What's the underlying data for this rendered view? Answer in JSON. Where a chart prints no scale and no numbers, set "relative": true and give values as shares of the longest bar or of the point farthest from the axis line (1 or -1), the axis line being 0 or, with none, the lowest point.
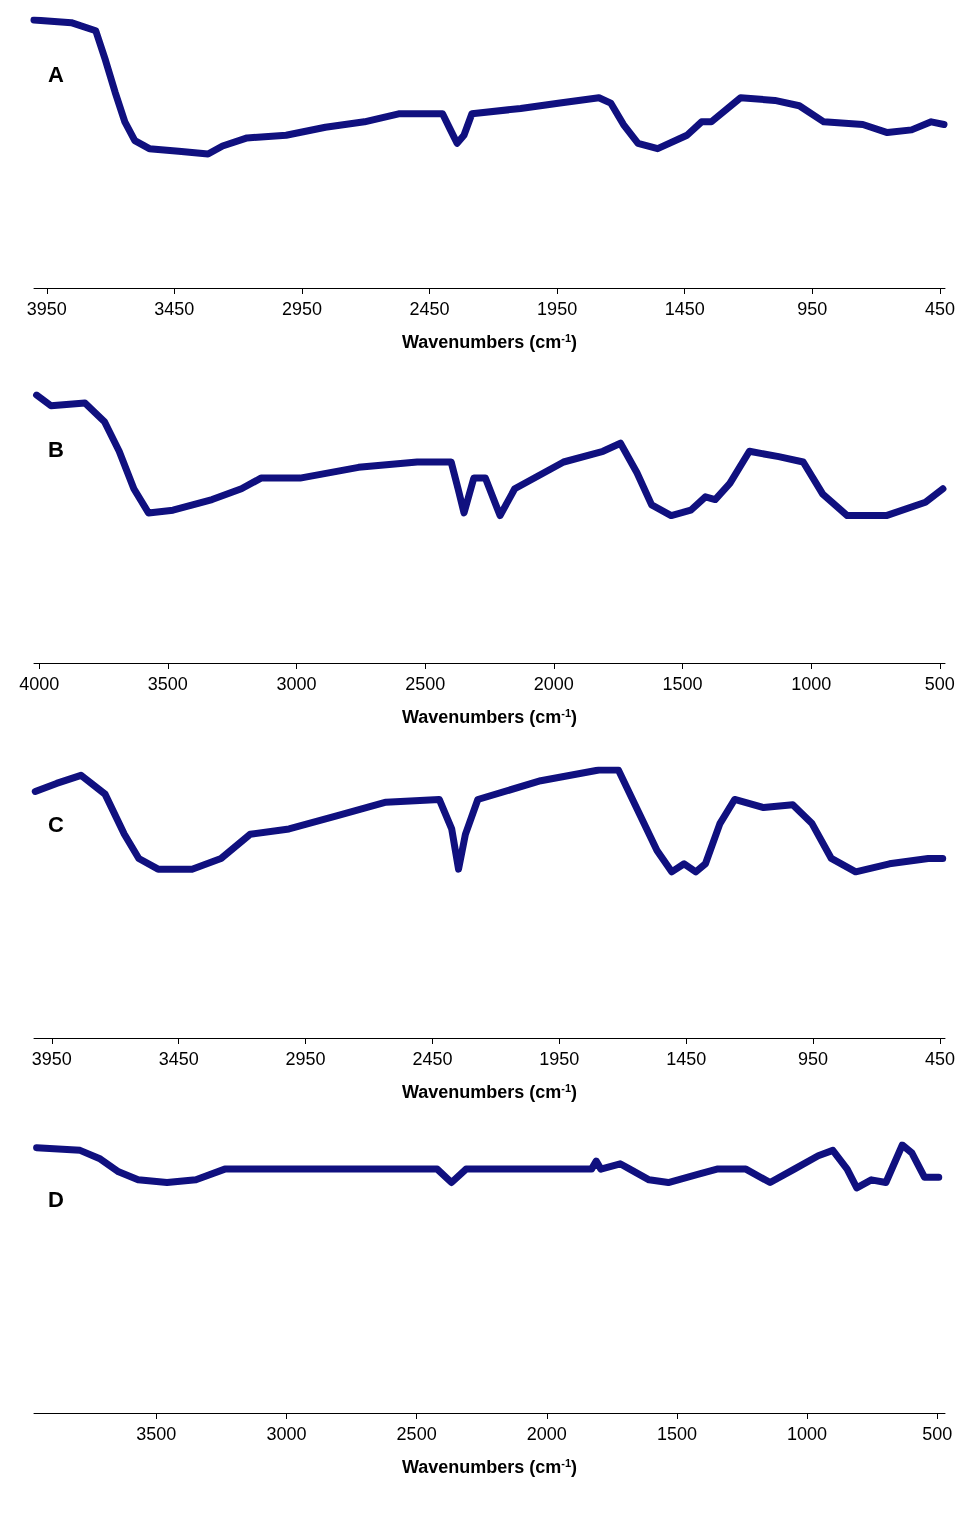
{
  "chart_data": [
    {
      "type": "line",
      "relative": true,
      "xlabel": "Wavenumbers (cm$^{-1}$)",
      "annotations": [
        "A"
      ],
      "xlim": [
        4000,
        430
      ],
      "xticks": [
        3950,
        3450,
        2950,
        2450,
        1950,
        1450,
        950,
        450
      ],
      "x": [
        4000,
        3854,
        3758,
        3720,
        3682,
        3644,
        3605,
        3548,
        3433,
        3318,
        3261,
        3165,
        3012,
        2858,
        2705,
        2571,
        2399,
        2368,
        2342,
        2315,
        2284,
        2093,
        1939,
        1786,
        1740,
        1690,
        1633,
        1556,
        1441,
        1384,
        1346,
        1231,
        1097,
        1001,
        905,
        752,
        656,
        561,
        484,
        434
      ],
      "series": [
        {
          "color": "#10107f",
          "values": [
            1.0,
            0.99,
            0.96,
            0.85,
            0.73,
            0.62,
            0.55,
            0.52,
            0.51,
            0.5,
            0.53,
            0.56,
            0.57,
            0.6,
            0.62,
            0.65,
            0.65,
            0.59,
            0.54,
            0.57,
            0.65,
            0.67,
            0.69,
            0.71,
            0.69,
            0.61,
            0.54,
            0.52,
            0.57,
            0.62,
            0.62,
            0.71,
            0.7,
            0.68,
            0.62,
            0.61,
            0.58,
            0.59,
            0.62,
            0.61
          ]
        }
      ]
    },
    {
      "type": "line",
      "relative": true,
      "xlabel": "Wavenumbers (cm$^{-1}$)",
      "annotations": [
        "B"
      ],
      "xlim": [
        4020,
        480
      ],
      "xticks": [
        4000,
        3500,
        3000,
        2500,
        2000,
        1500,
        1000,
        500
      ],
      "x": [
        4010,
        3954,
        3822,
        3746,
        3689,
        3632,
        3575,
        3480,
        3328,
        3214,
        3138,
        2986,
        2759,
        2531,
        2399,
        2372,
        2349,
        2311,
        2266,
        2209,
        2152,
        1962,
        1809,
        1741,
        1677,
        1620,
        1544,
        1468,
        1411,
        1373,
        1316,
        1240,
        1126,
        1031,
        955,
        860,
        708,
        556,
        488
      ],
      "series": [
        {
          "color": "#10107f",
          "values": [
            1.0,
            0.96,
            0.97,
            0.9,
            0.79,
            0.65,
            0.56,
            0.57,
            0.61,
            0.65,
            0.69,
            0.69,
            0.73,
            0.75,
            0.75,
            0.65,
            0.56,
            0.69,
            0.69,
            0.55,
            0.65,
            0.75,
            0.79,
            0.82,
            0.71,
            0.59,
            0.55,
            0.57,
            0.62,
            0.61,
            0.67,
            0.79,
            0.77,
            0.75,
            0.63,
            0.55,
            0.55,
            0.6,
            0.65
          ]
        }
      ]
    },
    {
      "type": "line",
      "relative": true,
      "xlabel": "Wavenumbers (cm$^{-1}$)",
      "annotations": [
        "C"
      ],
      "xlim": [
        4020,
        430
      ],
      "xticks": [
        3950,
        3450,
        2950,
        2450,
        1950,
        1450,
        950,
        450
      ],
      "x": [
        4015,
        3931,
        3835,
        3740,
        3664,
        3607,
        3531,
        3397,
        3283,
        3168,
        3015,
        2824,
        2633,
        2423,
        2374,
        2347,
        2320,
        2271,
        2023,
        1794,
        1717,
        1641,
        1565,
        1507,
        1458,
        1412,
        1374,
        1317,
        1259,
        1145,
        1030,
        954,
        878,
        782,
        649,
        496,
        439
      ],
      "series": [
        {
          "color": "#10107f",
          "values": [
            0.92,
            0.95,
            0.98,
            0.91,
            0.76,
            0.67,
            0.63,
            0.63,
            0.67,
            0.76,
            0.78,
            0.83,
            0.88,
            0.89,
            0.78,
            0.63,
            0.76,
            0.89,
            0.96,
            1.0,
            1.0,
            0.85,
            0.7,
            0.62,
            0.65,
            0.62,
            0.65,
            0.8,
            0.89,
            0.86,
            0.87,
            0.8,
            0.67,
            0.62,
            0.65,
            0.67,
            0.67
          ]
        }
      ]
    },
    {
      "type": "line",
      "relative": true,
      "xlabel": "Wavenumbers (cm$^{-1}$)",
      "annotations": [
        "D"
      ],
      "xlim": [
        3970,
        470
      ],
      "xticks": [
        3500,
        3000,
        2500,
        2000,
        1500,
        1000,
        500
      ],
      "x": [
        3960,
        3793,
        3719,
        3645,
        3570,
        3459,
        3348,
        3237,
        2421,
        2366,
        2310,
        1828,
        1810,
        1792,
        1718,
        1681,
        1607,
        1533,
        1420,
        1346,
        1235,
        1142,
        1049,
        957,
        901,
        846,
        809,
        753,
        697,
        634,
        597,
        549,
        494
      ],
      "series": [
        {
          "color": "#10107f",
          "values": [
            0.99,
            0.98,
            0.95,
            0.9,
            0.87,
            0.86,
            0.87,
            0.91,
            0.91,
            0.86,
            0.91,
            0.91,
            0.94,
            0.91,
            0.93,
            0.91,
            0.87,
            0.86,
            0.89,
            0.91,
            0.91,
            0.86,
            0.91,
            0.96,
            0.98,
            0.91,
            0.84,
            0.87,
            0.86,
            1.0,
            0.97,
            0.88,
            0.88
          ]
        }
      ]
    }
  ]
}
